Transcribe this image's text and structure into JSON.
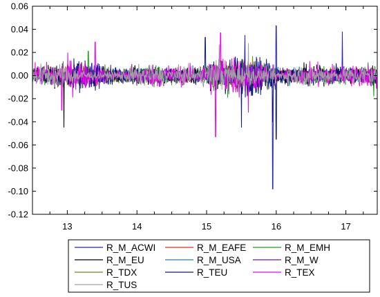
{
  "chart_data": {
    "type": "line",
    "title": "",
    "xlabel": "",
    "ylabel": "",
    "xlim": [
      12.5,
      17.45
    ],
    "ylim": [
      -0.12,
      0.06
    ],
    "x_ticks": [
      13,
      14,
      15,
      16,
      17
    ],
    "y_ticks": [
      -0.12,
      -0.1,
      -0.08,
      -0.06,
      -0.04,
      -0.02,
      0.0,
      0.02,
      0.04,
      0.06
    ],
    "x_tick_labels": [
      "13",
      "14",
      "15",
      "16",
      "17"
    ],
    "y_tick_labels": [
      "-0.12",
      "-0.10",
      "-0.08",
      "-0.06",
      "-0.04",
      "-0.02",
      "0.00",
      "0.02",
      "0.04",
      "0.06"
    ],
    "grid": false,
    "legend_position": "bottom",
    "legend_columns": 3,
    "series": [
      {
        "name": "R_M_ACWI",
        "color": "#2020d0",
        "amp": 0.0045,
        "spikes": [
          [
            15.95,
            -0.098
          ],
          [
            16.0,
            0.043
          ],
          [
            16.95,
            0.038
          ],
          [
            15.55,
            0.035
          ]
        ]
      },
      {
        "name": "R_M_EAFE",
        "color": "#e03020",
        "amp": 0.004,
        "spikes": []
      },
      {
        "name": "R_M_EMH",
        "color": "#18a018",
        "amp": 0.005,
        "spikes": [
          [
            13.3,
            0.021
          ],
          [
            17.4,
            -0.018
          ]
        ]
      },
      {
        "name": "R_M_EU",
        "color": "#000000",
        "amp": 0.0045,
        "spikes": [
          [
            12.95,
            -0.045
          ],
          [
            15.95,
            -0.04
          ]
        ]
      },
      {
        "name": "R_M_USA",
        "color": "#2a7ab0",
        "amp": 0.004,
        "spikes": []
      },
      {
        "name": "R_M_W",
        "color": "#6a1a8a",
        "amp": 0.004,
        "spikes": []
      },
      {
        "name": "R_TDX",
        "color": "#6a8a20",
        "amp": 0.004,
        "spikes": []
      },
      {
        "name": "R_TEU",
        "color": "#0a1a70",
        "amp": 0.006,
        "spikes": [
          [
            14.98,
            0.033
          ],
          [
            15.5,
            -0.045
          ],
          [
            16.0,
            -0.055
          ]
        ]
      },
      {
        "name": "R_TEX",
        "color": "#f000f0",
        "amp": 0.0065,
        "spikes": [
          [
            15.13,
            -0.053
          ],
          [
            15.2,
            0.037
          ],
          [
            13.4,
            0.029
          ],
          [
            15.6,
            -0.032
          ],
          [
            12.92,
            -0.03
          ]
        ]
      },
      {
        "name": "R_TUS",
        "color": "#a0a0a0",
        "amp": 0.005,
        "spikes": [
          [
            15.18,
            0.027
          ],
          [
            15.6,
            0.028
          ]
        ]
      }
    ]
  }
}
